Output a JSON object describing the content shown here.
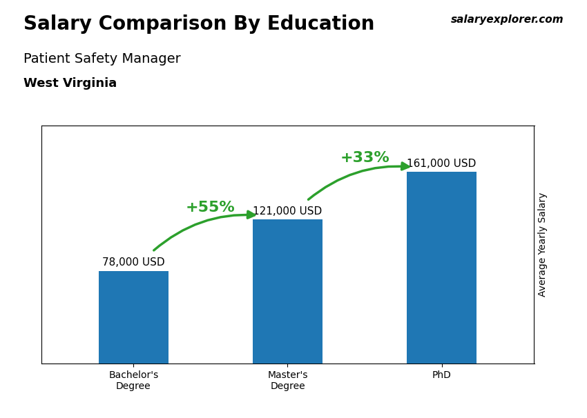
{
  "chart_data": {
    "type": "bar",
    "title": "Salary Comparison By Education",
    "subtitle": "Patient Safety Manager",
    "location": "West Virginia",
    "source": "salaryexplorer.com",
    "ylabel": "Average Yearly Salary",
    "categories": [
      "Bachelor's\nDegree",
      "Master's\nDegree",
      "PhD"
    ],
    "values": [
      78000,
      121000,
      161000
    ],
    "value_labels": [
      "78,000 USD",
      "121,000 USD",
      "161,000 USD"
    ],
    "data_labels": true,
    "annotations": [
      "+55%",
      "+33%"
    ],
    "ylim": [
      0,
      200000
    ],
    "yticks": [],
    "tick_labels": "x",
    "grid": false
  }
}
